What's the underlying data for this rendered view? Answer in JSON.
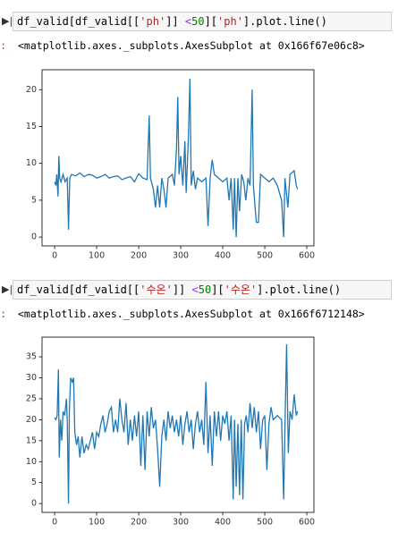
{
  "cells": [
    {
      "code": [
        {
          "text": "df_valid[df_valid[[",
          "color": "#000000"
        },
        {
          "text": "'ph'",
          "color": "#ba2121"
        },
        {
          "text": "]] ",
          "color": "#000000"
        },
        {
          "text": "<",
          "color": "#aa22ff"
        },
        {
          "text": "50",
          "color": "#008000"
        },
        {
          "text": "][",
          "color": "#000000"
        },
        {
          "text": "'ph'",
          "color": "#ba2121"
        },
        {
          "text": "].plot.line()",
          "color": "#000000"
        }
      ],
      "prompt": ":",
      "output": "<matplotlib.axes._subplots.AxesSubplot at 0x166f67e06c8>"
    },
    {
      "code": [
        {
          "text": "df_valid[df_valid[[",
          "color": "#000000"
        },
        {
          "text": "'수온'",
          "color": "#ba2121"
        },
        {
          "text": "]] ",
          "color": "#000000"
        },
        {
          "text": "<",
          "color": "#aa22ff"
        },
        {
          "text": "50",
          "color": "#008000"
        },
        {
          "text": "][",
          "color": "#000000"
        },
        {
          "text": "'수온'",
          "color": "#ba2121"
        },
        {
          "text": "].plot.line()",
          "color": "#000000"
        }
      ],
      "prompt": ":",
      "output": "<matplotlib.axes._subplots.AxesSubplot at 0x166f6712148>"
    }
  ],
  "chart_data": [
    {
      "type": "line",
      "color": "#1f77b4",
      "xlim": [
        -30,
        617
      ],
      "xticks": [
        0,
        100,
        200,
        300,
        400,
        500,
        600
      ],
      "ylim": [
        -1.2,
        22.7
      ],
      "yticks": [
        0,
        5,
        10,
        15,
        20
      ],
      "x": [
        0,
        3,
        5,
        8,
        10,
        12,
        15,
        20,
        25,
        30,
        33,
        36,
        40,
        50,
        60,
        70,
        80,
        90,
        100,
        110,
        120,
        130,
        140,
        150,
        160,
        170,
        180,
        190,
        200,
        210,
        220,
        225,
        228,
        235,
        240,
        245,
        250,
        255,
        260,
        265,
        270,
        280,
        285,
        290,
        293,
        296,
        300,
        305,
        310,
        313,
        318,
        322,
        325,
        330,
        335,
        340,
        350,
        360,
        365,
        370,
        375,
        380,
        390,
        400,
        410,
        415,
        420,
        425,
        428,
        432,
        436,
        440,
        445,
        450,
        455,
        460,
        465,
        470,
        473,
        477,
        480,
        485,
        490,
        500,
        510,
        520,
        530,
        540,
        545,
        548,
        555,
        560,
        570,
        575,
        578
      ],
      "values": [
        7.5,
        7,
        8.5,
        5.5,
        11,
        8,
        7.5,
        8.5,
        7.5,
        8,
        1,
        8,
        8.5,
        8.3,
        8.7,
        8.2,
        8.5,
        8.4,
        8,
        8.2,
        8.5,
        8,
        8.2,
        8.3,
        7.8,
        8,
        8.2,
        7.5,
        8.6,
        8,
        7.8,
        16.5,
        8,
        6.5,
        4,
        7,
        4,
        8,
        6.5,
        4,
        8,
        8.5,
        7,
        12,
        19,
        8.5,
        11,
        7,
        13,
        6,
        13,
        21.5,
        7,
        9,
        6.5,
        8,
        7.5,
        8,
        1.5,
        8,
        10.5,
        8.5,
        8,
        7.5,
        8,
        5,
        8,
        1,
        8,
        0,
        8,
        3.5,
        8.5,
        7.5,
        5,
        8,
        7,
        20,
        7,
        4,
        2,
        2,
        8.5,
        8,
        7.5,
        8,
        7,
        5,
        0,
        8,
        4,
        8.5,
        9,
        7,
        6.5
      ]
    },
    {
      "type": "line",
      "color": "#1f77b4",
      "xlim": [
        -30,
        617
      ],
      "xticks": [
        0,
        100,
        200,
        300,
        400,
        500,
        600
      ],
      "ylim": [
        -2.1,
        39.7
      ],
      "yticks": [
        0,
        5,
        10,
        15,
        20,
        25,
        30,
        35
      ],
      "x": [
        0,
        3,
        6,
        9,
        11,
        14,
        17,
        20,
        24,
        28,
        30,
        33,
        35,
        38,
        42,
        45,
        48,
        52,
        56,
        60,
        65,
        70,
        75,
        80,
        85,
        90,
        95,
        100,
        105,
        110,
        115,
        120,
        125,
        130,
        135,
        140,
        145,
        150,
        155,
        160,
        165,
        170,
        175,
        180,
        185,
        190,
        195,
        200,
        205,
        210,
        215,
        220,
        225,
        230,
        235,
        240,
        245,
        250,
        255,
        260,
        265,
        270,
        275,
        280,
        285,
        290,
        295,
        300,
        305,
        310,
        315,
        320,
        325,
        330,
        335,
        340,
        345,
        350,
        355,
        360,
        365,
        370,
        375,
        380,
        385,
        390,
        395,
        400,
        405,
        410,
        415,
        420,
        425,
        428,
        432,
        436,
        440,
        444,
        448,
        452,
        456,
        460,
        465,
        470,
        475,
        480,
        485,
        490,
        495,
        500,
        505,
        510,
        515,
        520,
        530,
        540,
        545,
        548,
        552,
        556,
        560,
        565,
        570,
        575,
        578
      ],
      "values": [
        20.5,
        20,
        21,
        32,
        11,
        20,
        15,
        22,
        21,
        25,
        20,
        0,
        22,
        30,
        29,
        30,
        17,
        14,
        16,
        11,
        16,
        12,
        14,
        13,
        15,
        17,
        13,
        17,
        16,
        19,
        21,
        17,
        19,
        22,
        23,
        17,
        20,
        17,
        25,
        20,
        17,
        24,
        14,
        20,
        15,
        21,
        16,
        22,
        9,
        21,
        8,
        22,
        16,
        23,
        18,
        20,
        13,
        4,
        16,
        20,
        15,
        22,
        18,
        21,
        17,
        20,
        16,
        21,
        14,
        19,
        22,
        17,
        20,
        13,
        19,
        22,
        17,
        20,
        14,
        29,
        12,
        21,
        9,
        22,
        16,
        22,
        15,
        21,
        19,
        22,
        15,
        21,
        1,
        20,
        4,
        19,
        2,
        20,
        1,
        19,
        21,
        17,
        24,
        18,
        23,
        17,
        22,
        13,
        20,
        21,
        8,
        19,
        23,
        20,
        21,
        20,
        1,
        18,
        38,
        12,
        22,
        20,
        26,
        21,
        22
      ]
    }
  ]
}
